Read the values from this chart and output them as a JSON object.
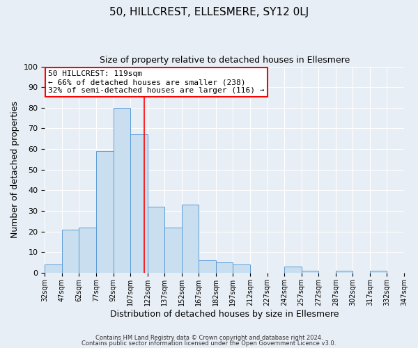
{
  "title": "50, HILLCREST, ELLESMERE, SY12 0LJ",
  "subtitle": "Size of property relative to detached houses in Ellesmere",
  "xlabel": "Distribution of detached houses by size in Ellesmere",
  "ylabel": "Number of detached properties",
  "bin_labels": [
    "32sqm",
    "47sqm",
    "62sqm",
    "77sqm",
    "92sqm",
    "107sqm",
    "122sqm",
    "137sqm",
    "152sqm",
    "167sqm",
    "182sqm",
    "197sqm",
    "212sqm",
    "227sqm",
    "242sqm",
    "257sqm",
    "272sqm",
    "287sqm",
    "302sqm",
    "317sqm",
    "332sqm"
  ],
  "bin_edges": [
    32,
    47,
    62,
    77,
    92,
    107,
    122,
    137,
    152,
    167,
    182,
    197,
    212,
    227,
    242,
    257,
    272,
    287,
    302,
    317,
    332
  ],
  "bar_heights": [
    4,
    21,
    22,
    59,
    80,
    67,
    32,
    22,
    33,
    6,
    5,
    4,
    0,
    0,
    3,
    1,
    0,
    1,
    0,
    1
  ],
  "bar_color": "#c9dff0",
  "bar_edge_color": "#5b9bd5",
  "vline_x": 119,
  "vline_color": "red",
  "annotation_title": "50 HILLCREST: 119sqm",
  "annotation_line1": "← 66% of detached houses are smaller (238)",
  "annotation_line2": "32% of semi-detached houses are larger (116) →",
  "annotation_box_color": "white",
  "annotation_box_edge_color": "red",
  "ylim": [
    0,
    100
  ],
  "yticks": [
    0,
    10,
    20,
    30,
    40,
    50,
    60,
    70,
    80,
    90,
    100
  ],
  "background_color": "#e8eef5",
  "plot_background": "#e8eef5",
  "footer1": "Contains HM Land Registry data © Crown copyright and database right 2024.",
  "footer2": "Contains public sector information licensed under the Open Government Licence v3.0.",
  "title_fontsize": 11,
  "subtitle_fontsize": 9,
  "xlabel_fontsize": 9,
  "ylabel_fontsize": 9
}
